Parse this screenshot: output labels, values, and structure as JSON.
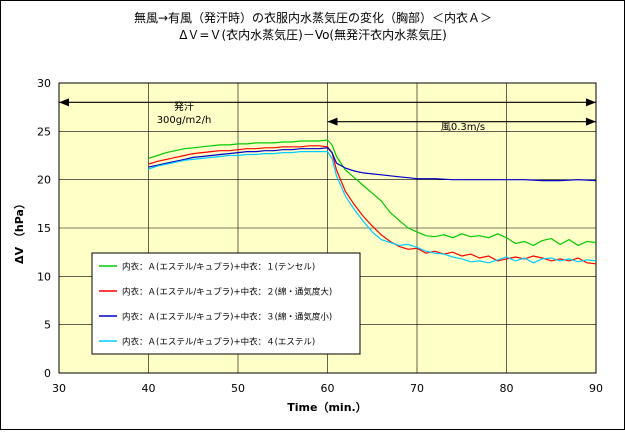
{
  "chart_data": {
    "type": "line",
    "title_line1": "無風→有風（発汗時）の衣服内水蒸気圧の変化（胸部）＜内衣Ａ＞",
    "title_line2": "ΔＶ=Ｖ(衣内水蒸気圧)－Vo(無発汗衣内水蒸気圧)",
    "xlabel": "Time（min.）",
    "ylabel": "ΔV （hPa）",
    "xlim": [
      30,
      90
    ],
    "ylim": [
      0,
      30
    ],
    "xticks": [
      30,
      40,
      50,
      60,
      70,
      80,
      90
    ],
    "yticks": [
      0,
      5,
      10,
      15,
      20,
      25,
      30
    ],
    "grid": true,
    "plot_background": "#ffffc8",
    "legend_placement": "lower-left",
    "annotations": {
      "sweat_label": "発汗",
      "sweat_rate": "300g/m2/h",
      "wind_label": "風0.3m/s",
      "sweat_arrow_x": [
        30,
        90
      ],
      "sweat_arrow_y": 28,
      "wind_arrow_x": [
        60,
        90
      ],
      "wind_arrow_y": 26
    },
    "series": [
      {
        "name": "内衣：Ａ(エステル/キュプラ)+中衣：１(テンセル)",
        "color": "#00cc00",
        "points": [
          [
            40,
            22.2
          ],
          [
            41,
            22.5
          ],
          [
            42,
            22.8
          ],
          [
            43,
            23.0
          ],
          [
            44,
            23.2
          ],
          [
            45,
            23.3
          ],
          [
            46,
            23.4
          ],
          [
            47,
            23.5
          ],
          [
            48,
            23.6
          ],
          [
            49,
            23.6
          ],
          [
            50,
            23.7
          ],
          [
            51,
            23.7
          ],
          [
            52,
            23.8
          ],
          [
            53,
            23.8
          ],
          [
            54,
            23.8
          ],
          [
            55,
            23.9
          ],
          [
            56,
            23.9
          ],
          [
            57,
            24.0
          ],
          [
            58,
            24.0
          ],
          [
            59,
            24.0
          ],
          [
            60,
            24.1
          ],
          [
            60.5,
            23.6
          ],
          [
            61,
            22.4
          ],
          [
            62,
            21.0
          ],
          [
            63,
            20.2
          ],
          [
            64,
            19.4
          ],
          [
            65,
            18.6
          ],
          [
            66,
            17.8
          ],
          [
            67,
            16.6
          ],
          [
            68,
            15.8
          ],
          [
            69,
            15.0
          ],
          [
            70,
            14.6
          ],
          [
            71,
            14.2
          ],
          [
            72,
            14.1
          ],
          [
            73,
            14.3
          ],
          [
            74,
            14.0
          ],
          [
            75,
            14.4
          ],
          [
            76,
            14.1
          ],
          [
            77,
            14.2
          ],
          [
            78,
            14.0
          ],
          [
            79,
            14.4
          ],
          [
            80,
            14.0
          ],
          [
            81,
            13.4
          ],
          [
            82,
            13.6
          ],
          [
            83,
            13.2
          ],
          [
            84,
            13.7
          ],
          [
            85,
            13.9
          ],
          [
            86,
            13.3
          ],
          [
            87,
            13.8
          ],
          [
            88,
            13.2
          ],
          [
            89,
            13.6
          ],
          [
            90,
            13.5
          ]
        ]
      },
      {
        "name": "内衣：Ａ(エステル/キュプラ)+中衣：２(綿・通気度大)",
        "color": "#ff0000",
        "points": [
          [
            40,
            21.6
          ],
          [
            41,
            21.9
          ],
          [
            42,
            22.1
          ],
          [
            43,
            22.3
          ],
          [
            44,
            22.5
          ],
          [
            45,
            22.7
          ],
          [
            46,
            22.8
          ],
          [
            47,
            22.9
          ],
          [
            48,
            23.0
          ],
          [
            49,
            23.0
          ],
          [
            50,
            23.1
          ],
          [
            51,
            23.2
          ],
          [
            52,
            23.2
          ],
          [
            53,
            23.3
          ],
          [
            54,
            23.3
          ],
          [
            55,
            23.4
          ],
          [
            56,
            23.4
          ],
          [
            57,
            23.4
          ],
          [
            58,
            23.5
          ],
          [
            59,
            23.5
          ],
          [
            60,
            23.4
          ],
          [
            60.5,
            22.8
          ],
          [
            61,
            21.0
          ],
          [
            62,
            18.8
          ],
          [
            63,
            17.4
          ],
          [
            64,
            16.2
          ],
          [
            65,
            15.2
          ],
          [
            66,
            14.3
          ],
          [
            67,
            13.6
          ],
          [
            68,
            13.1
          ],
          [
            69,
            12.8
          ],
          [
            70,
            12.9
          ],
          [
            71,
            12.4
          ],
          [
            72,
            12.6
          ],
          [
            73,
            12.3
          ],
          [
            74,
            12.5
          ],
          [
            75,
            12.1
          ],
          [
            76,
            12.3
          ],
          [
            77,
            11.9
          ],
          [
            78,
            12.1
          ],
          [
            79,
            11.6
          ],
          [
            80,
            11.8
          ],
          [
            81,
            12.0
          ],
          [
            82,
            11.8
          ],
          [
            83,
            12.1
          ],
          [
            84,
            11.9
          ],
          [
            85,
            11.6
          ],
          [
            86,
            11.8
          ],
          [
            87,
            11.6
          ],
          [
            88,
            11.9
          ],
          [
            89,
            11.4
          ],
          [
            90,
            11.3
          ]
        ]
      },
      {
        "name": "内衣：Ａ(エステル/キュプラ)+中衣：３(綿・通気度小)",
        "color": "#0000cc",
        "points": [
          [
            40,
            21.3
          ],
          [
            41,
            21.5
          ],
          [
            42,
            21.7
          ],
          [
            43,
            21.9
          ],
          [
            44,
            22.1
          ],
          [
            45,
            22.3
          ],
          [
            46,
            22.4
          ],
          [
            47,
            22.5
          ],
          [
            48,
            22.6
          ],
          [
            49,
            22.7
          ],
          [
            50,
            22.8
          ],
          [
            51,
            22.9
          ],
          [
            52,
            22.9
          ],
          [
            53,
            23.0
          ],
          [
            54,
            23.0
          ],
          [
            55,
            23.1
          ],
          [
            56,
            23.1
          ],
          [
            57,
            23.2
          ],
          [
            58,
            23.2
          ],
          [
            59,
            23.2
          ],
          [
            60,
            23.3
          ],
          [
            60.5,
            22.8
          ],
          [
            61,
            21.7
          ],
          [
            62,
            21.2
          ],
          [
            63,
            20.9
          ],
          [
            64,
            20.7
          ],
          [
            65,
            20.6
          ],
          [
            66,
            20.5
          ],
          [
            67,
            20.4
          ],
          [
            68,
            20.3
          ],
          [
            69,
            20.2
          ],
          [
            70,
            20.1
          ],
          [
            72,
            20.1
          ],
          [
            74,
            20.0
          ],
          [
            76,
            20.0
          ],
          [
            78,
            20.0
          ],
          [
            80,
            20.0
          ],
          [
            82,
            20.0
          ],
          [
            84,
            19.9
          ],
          [
            86,
            19.9
          ],
          [
            88,
            20.0
          ],
          [
            90,
            19.9
          ]
        ]
      },
      {
        "name": "内衣：Ａ(エステル/キュプラ)+中衣：４(エステル)",
        "color": "#00ccff",
        "points": [
          [
            40,
            21.1
          ],
          [
            41,
            21.4
          ],
          [
            42,
            21.6
          ],
          [
            43,
            21.8
          ],
          [
            44,
            22.0
          ],
          [
            45,
            22.1
          ],
          [
            46,
            22.2
          ],
          [
            47,
            22.3
          ],
          [
            48,
            22.4
          ],
          [
            49,
            22.5
          ],
          [
            50,
            22.5
          ],
          [
            51,
            22.6
          ],
          [
            52,
            22.6
          ],
          [
            53,
            22.7
          ],
          [
            54,
            22.7
          ],
          [
            55,
            22.8
          ],
          [
            56,
            22.8
          ],
          [
            57,
            22.9
          ],
          [
            58,
            22.9
          ],
          [
            59,
            22.9
          ],
          [
            60,
            22.9
          ],
          [
            60.5,
            22.2
          ],
          [
            61,
            20.4
          ],
          [
            62,
            18.3
          ],
          [
            63,
            16.9
          ],
          [
            64,
            15.7
          ],
          [
            65,
            14.6
          ],
          [
            66,
            13.8
          ],
          [
            67,
            13.5
          ],
          [
            68,
            13.2
          ],
          [
            69,
            13.3
          ],
          [
            70,
            13.0
          ],
          [
            71,
            12.6
          ],
          [
            72,
            12.4
          ],
          [
            73,
            12.3
          ],
          [
            74,
            12.0
          ],
          [
            75,
            11.8
          ],
          [
            76,
            11.5
          ],
          [
            77,
            11.6
          ],
          [
            78,
            11.4
          ],
          [
            79,
            11.7
          ],
          [
            80,
            12.0
          ],
          [
            81,
            11.6
          ],
          [
            82,
            11.9
          ],
          [
            83,
            11.4
          ],
          [
            84,
            11.8
          ],
          [
            85,
            11.9
          ],
          [
            86,
            11.6
          ],
          [
            87,
            11.8
          ],
          [
            88,
            11.5
          ],
          [
            89,
            11.7
          ],
          [
            90,
            11.6
          ]
        ]
      }
    ]
  }
}
